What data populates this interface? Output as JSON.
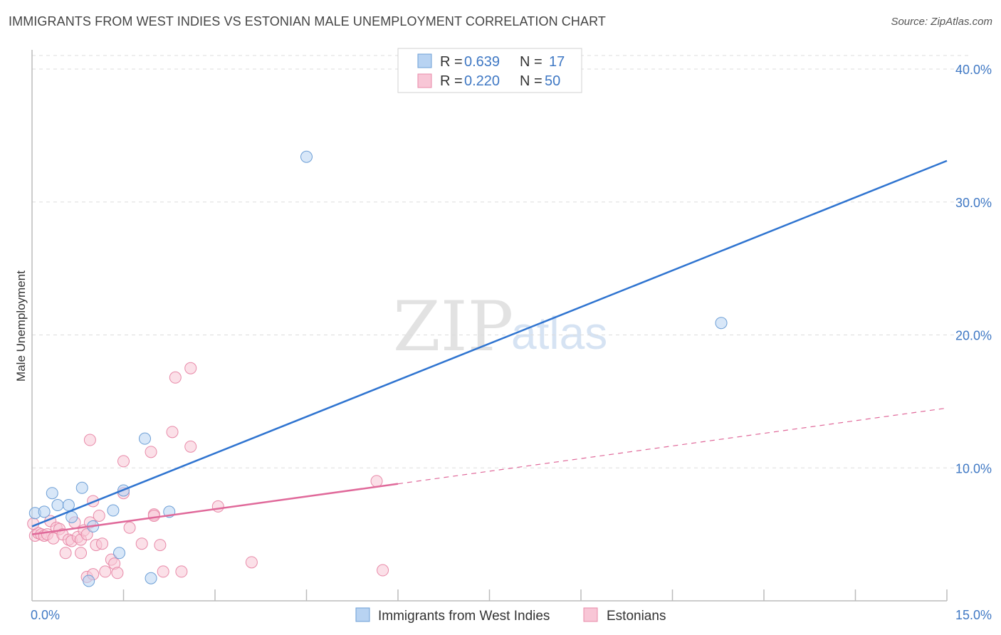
{
  "header": {
    "title": "IMMIGRANTS FROM WEST INDIES VS ESTONIAN MALE UNEMPLOYMENT CORRELATION CHART",
    "source": "Source: ZipAtlas.com"
  },
  "watermark": {
    "zip": "ZIP",
    "atlas": "atlas"
  },
  "legend": [
    {
      "r_label": "R = ",
      "r_value": "0.639",
      "n_label": "N = ",
      "n_value": "17"
    },
    {
      "r_label": "R = ",
      "r_value": "0.220",
      "n_label": "N = ",
      "n_value": "50"
    }
  ],
  "colors": {
    "series1_fill": "#b8d3f2",
    "series1_stroke": "#6d9fd6",
    "series1_line": "#2f74d0",
    "series2_fill": "#f8c6d6",
    "series2_stroke": "#e889a8",
    "series2_line": "#e0699a",
    "grid": "#dddddd",
    "axis": "#bbbbbb"
  },
  "chart_data": {
    "type": "scatter",
    "title": "IMMIGRANTS FROM WEST INDIES VS ESTONIAN MALE UNEMPLOYMENT CORRELATION CHART",
    "xlabel": "",
    "ylabel": "Male Unemployment",
    "xlim": [
      0,
      15
    ],
    "ylim": [
      0,
      40
    ],
    "x_tick_labels": [
      {
        "value": 0,
        "label": "0.0%"
      },
      {
        "value": 15,
        "label": "15.0%"
      }
    ],
    "y_tick_labels": [
      {
        "value": 10,
        "label": "10.0%"
      },
      {
        "value": 20,
        "label": "20.0%"
      },
      {
        "value": 30,
        "label": "30.0%"
      },
      {
        "value": 40,
        "label": "40.0%"
      }
    ],
    "grid": true,
    "series": [
      {
        "name": "Immigrants from West Indies",
        "R": 0.639,
        "N": 17,
        "points": [
          {
            "x": 0.05,
            "y": 6.6
          },
          {
            "x": 0.2,
            "y": 6.7
          },
          {
            "x": 0.33,
            "y": 8.1
          },
          {
            "x": 0.42,
            "y": 7.2
          },
          {
            "x": 0.6,
            "y": 7.2
          },
          {
            "x": 0.65,
            "y": 6.3
          },
          {
            "x": 0.82,
            "y": 8.5
          },
          {
            "x": 0.93,
            "y": 1.5
          },
          {
            "x": 1.0,
            "y": 5.6
          },
          {
            "x": 1.33,
            "y": 6.8
          },
          {
            "x": 1.43,
            "y": 3.6
          },
          {
            "x": 1.5,
            "y": 8.3
          },
          {
            "x": 1.85,
            "y": 12.2
          },
          {
            "x": 1.95,
            "y": 1.7
          },
          {
            "x": 2.25,
            "y": 6.7
          },
          {
            "x": 4.5,
            "y": 33.4
          },
          {
            "x": 11.3,
            "y": 20.9
          }
        ],
        "trend": {
          "x": [
            0,
            15
          ],
          "y": [
            5.6,
            33.1
          ],
          "style": "solid"
        }
      },
      {
        "name": "Estonians",
        "R": 0.22,
        "N": 50,
        "points": [
          {
            "x": 0.05,
            "y": 4.9
          },
          {
            "x": 0.1,
            "y": 5.1
          },
          {
            "x": 0.15,
            "y": 5.0
          },
          {
            "x": 0.2,
            "y": 4.9
          },
          {
            "x": 0.25,
            "y": 5.0
          },
          {
            "x": 0.3,
            "y": 6.0
          },
          {
            "x": 0.35,
            "y": 4.7
          },
          {
            "x": 0.4,
            "y": 5.5
          },
          {
            "x": 0.45,
            "y": 5.4
          },
          {
            "x": 0.5,
            "y": 5.0
          },
          {
            "x": 0.55,
            "y": 3.6
          },
          {
            "x": 0.6,
            "y": 4.6
          },
          {
            "x": 0.65,
            "y": 4.5
          },
          {
            "x": 0.7,
            "y": 5.9
          },
          {
            "x": 0.75,
            "y": 4.8
          },
          {
            "x": 0.8,
            "y": 3.6
          },
          {
            "x": 0.8,
            "y": 4.6
          },
          {
            "x": 0.85,
            "y": 5.3
          },
          {
            "x": 0.9,
            "y": 5.0
          },
          {
            "x": 0.9,
            "y": 1.8
          },
          {
            "x": 0.95,
            "y": 5.9
          },
          {
            "x": 0.95,
            "y": 12.1
          },
          {
            "x": 1.0,
            "y": 7.5
          },
          {
            "x": 1.0,
            "y": 2.0
          },
          {
            "x": 1.05,
            "y": 4.2
          },
          {
            "x": 1.1,
            "y": 6.4
          },
          {
            "x": 1.15,
            "y": 4.3
          },
          {
            "x": 1.2,
            "y": 2.2
          },
          {
            "x": 1.3,
            "y": 3.1
          },
          {
            "x": 1.35,
            "y": 2.8
          },
          {
            "x": 1.4,
            "y": 2.1
          },
          {
            "x": 1.5,
            "y": 8.1
          },
          {
            "x": 1.5,
            "y": 10.5
          },
          {
            "x": 1.6,
            "y": 5.5
          },
          {
            "x": 1.8,
            "y": 4.3
          },
          {
            "x": 1.95,
            "y": 11.2
          },
          {
            "x": 2.0,
            "y": 6.5
          },
          {
            "x": 2.0,
            "y": 6.4
          },
          {
            "x": 2.1,
            "y": 4.2
          },
          {
            "x": 2.15,
            "y": 2.2
          },
          {
            "x": 2.3,
            "y": 12.7
          },
          {
            "x": 2.35,
            "y": 16.8
          },
          {
            "x": 2.45,
            "y": 2.2
          },
          {
            "x": 2.6,
            "y": 17.5
          },
          {
            "x": 2.6,
            "y": 11.6
          },
          {
            "x": 3.05,
            "y": 7.1
          },
          {
            "x": 3.6,
            "y": 2.9
          },
          {
            "x": 5.65,
            "y": 9.0
          },
          {
            "x": 5.75,
            "y": 2.3
          },
          {
            "x": 0.02,
            "y": 5.8
          }
        ],
        "trend": {
          "x": [
            0,
            6
          ],
          "y": [
            5.0,
            8.8
          ],
          "style": "solid"
        },
        "trend_extension": {
          "x": [
            6,
            15
          ],
          "y": [
            8.8,
            14.5
          ],
          "style": "dashed"
        }
      }
    ]
  }
}
